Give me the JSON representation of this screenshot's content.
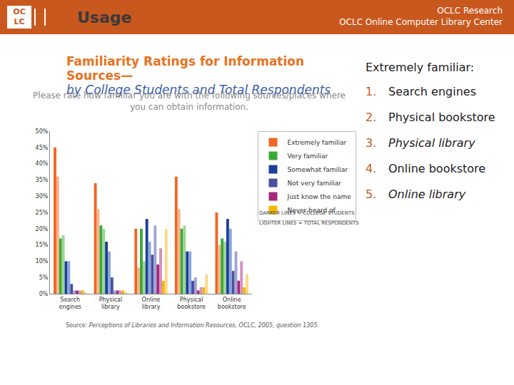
{
  "slide": {
    "logo": [
      "OC",
      "LC"
    ],
    "title": "Usage",
    "org": [
      "OCLC Research",
      "OCLC Online Computer Library Center"
    ],
    "list_heading": "Extremely familiar:",
    "list": [
      {
        "marker": "1.",
        "text": "Search engines",
        "italic": false
      },
      {
        "marker": "2.",
        "text": "Physical bookstore",
        "italic": false
      },
      {
        "marker": "3.",
        "text": "Physical library",
        "italic": true
      },
      {
        "marker": "4.",
        "text": "Online bookstore",
        "italic": false
      },
      {
        "marker": "5.",
        "text": "Online library",
        "italic": true
      }
    ]
  },
  "chart_data": {
    "type": "bar",
    "title": "Familiarity Ratings for Information Sources—",
    "subtitle": "by College Students and Total Respondents",
    "question": "Please rate how familiar you are with the following sources/places where you can obtain information.",
    "source_label": "Source:",
    "source": "Perceptions of Libraries and Information Resources, OCLC, 2005, question 1305.",
    "legend_notes": [
      "DARKER LINES = COLLEGE STUDENTS",
      "LIGHTER LINES = TOTAL RESPONDENTS"
    ],
    "categories": [
      "Search engines",
      "Physical library",
      "Online library",
      "Physical bookstore",
      "Online bookstore"
    ],
    "series": [
      {
        "name": "Extremely familiar",
        "color": "#f26522",
        "values": [
          45,
          34,
          20,
          36,
          25
        ]
      },
      {
        "name": "Extremely familiar",
        "color": "#f9b48a",
        "values": [
          36,
          26,
          8,
          26,
          15
        ]
      },
      {
        "name": "Very familiar",
        "color": "#3aaa35",
        "values": [
          17,
          21,
          20,
          20,
          17
        ]
      },
      {
        "name": "Very familiar",
        "color": "#9fd49a",
        "values": [
          18,
          20,
          10,
          21,
          16
        ]
      },
      {
        "name": "Somewhat familiar",
        "color": "#1b3f9a",
        "values": [
          10,
          16,
          23,
          13,
          23
        ]
      },
      {
        "name": "Somewhat familiar",
        "color": "#8aa5d9",
        "values": [
          10,
          13,
          16,
          13,
          20
        ]
      },
      {
        "name": "Not very familiar",
        "color": "#4b4f9e",
        "values": [
          3,
          5,
          12,
          4,
          7
        ]
      },
      {
        "name": "Not very familiar",
        "color": "#a1a3d4",
        "values": [
          1,
          1,
          21,
          5,
          13
        ]
      },
      {
        "name": "Just know the name",
        "color": "#a3287c",
        "values": [
          1,
          1,
          9,
          1,
          4
        ]
      },
      {
        "name": "Just know the name",
        "color": "#d591c0",
        "values": [
          1,
          1,
          14,
          2,
          10
        ]
      },
      {
        "name": "Never heard of",
        "color": "#f5b800",
        "values": [
          1,
          1,
          4,
          2,
          2
        ]
      },
      {
        "name": "Never heard of",
        "color": "#fbd98a",
        "values": [
          0.5,
          0.5,
          20,
          6,
          6
        ]
      }
    ],
    "ylim": [
      0,
      50
    ],
    "yticks": [
      {
        "value": 0,
        "label": "0%"
      },
      {
        "value": 5,
        "label": "5%"
      },
      {
        "value": 10,
        "label": "10%"
      },
      {
        "value": 15,
        "label": "15%"
      },
      {
        "value": 20,
        "label": "20%"
      },
      {
        "value": 25,
        "label": "25%"
      },
      {
        "value": 30,
        "label": "30%"
      },
      {
        "value": 35,
        "label": "35%"
      },
      {
        "value": 40,
        "label": "40%"
      },
      {
        "value": 45,
        "label": "45%"
      },
      {
        "value": 50,
        "label": "50%"
      }
    ],
    "grid": false,
    "legend": "right"
  }
}
